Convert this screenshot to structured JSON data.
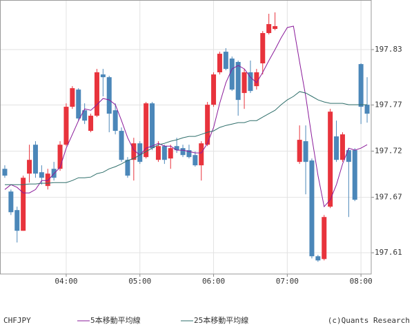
{
  "chart_data": {
    "type": "candlestick",
    "name": "CHFJPY",
    "footer": "(c)Quants Research",
    "up_color": "#e8333c",
    "down_color": "#4b87b9",
    "categories": [
      null,
      null,
      null,
      null,
      null,
      null,
      null,
      null,
      null,
      null,
      "04:00",
      null,
      null,
      null,
      null,
      null,
      null,
      null,
      null,
      null,
      null,
      null,
      "05:00",
      null,
      null,
      null,
      null,
      null,
      null,
      null,
      null,
      null,
      null,
      null,
      "06:00",
      null,
      null,
      null,
      null,
      null,
      null,
      null,
      null,
      null,
      null,
      null,
      "07:00",
      null,
      null,
      null,
      null,
      null,
      null,
      null,
      null,
      null,
      null,
      null,
      "08:00",
      null
    ],
    "open": [
      197.7009,
      197.6763,
      197.6562,
      197.6338,
      197.6957,
      197.727,
      197.6972,
      197.6823,
      197.7009,
      197.7009,
      197.727,
      197.7681,
      197.7867,
      197.7643,
      197.742,
      197.7584,
      197.8031,
      197.8001,
      197.7643,
      197.742,
      197.7106,
      197.7106,
      197.7285,
      197.7136,
      197.7718,
      197.7106,
      197.7255,
      197.7121,
      197.7255,
      197.7233,
      197.7211,
      197.7158,
      197.7047,
      197.727,
      197.7703,
      197.8054,
      197.8277,
      197.8203,
      197.8166,
      197.783,
      197.8054,
      197.7904,
      197.8151,
      197.8479,
      197.8524,
      null,
      null,
      null,
      197.7084,
      197.7308,
      197.7099,
      197.6062,
      197.6032,
      197.6599,
      197.736,
      197.7106,
      197.7211,
      197.7211,
      197.8143,
      197.7703
    ],
    "high": [
      197.7047,
      197.6785,
      197.6599,
      197.6935,
      197.727,
      197.7308,
      197.7047,
      197.7009,
      197.7084,
      197.7308,
      197.7718,
      197.7904,
      197.7882,
      197.7718,
      197.7606,
      197.8091,
      197.8091,
      197.8016,
      197.7718,
      197.7457,
      197.7136,
      197.7345,
      197.7308,
      197.7733,
      197.7733,
      197.7308,
      197.727,
      197.727,
      197.7345,
      197.727,
      197.727,
      197.7196,
      197.7308,
      197.7733,
      197.8054,
      197.8277,
      197.8315,
      197.8225,
      197.8181,
      197.8091,
      197.8181,
      197.8091,
      197.8501,
      197.8688,
      197.8703,
      null,
      null,
      null,
      197.7479,
      197.7479,
      197.7121,
      197.6077,
      197.6509,
      197.7658,
      197.7531,
      197.7405,
      197.7233,
      197.7233,
      197.8151,
      197.8001
    ],
    "low": [
      197.6912,
      197.6509,
      197.6211,
      197.6338,
      197.686,
      197.6912,
      197.6838,
      197.6785,
      197.6882,
      197.6987,
      197.7255,
      197.7658,
      197.7531,
      197.7494,
      197.7405,
      197.7569,
      197.7793,
      197.7405,
      197.7382,
      197.7084,
      197.6912,
      197.6882,
      197.7062,
      197.7121,
      197.7211,
      197.7084,
      197.7062,
      197.7009,
      197.7181,
      197.7136,
      197.7121,
      197.7032,
      197.6882,
      197.7255,
      197.7681,
      197.8031,
      197.8076,
      197.7852,
      197.7584,
      197.7658,
      197.783,
      197.7867,
      197.8031,
      197.8464,
      197.8509,
      null,
      null,
      null,
      197.7062,
      197.6733,
      197.6039,
      197.6002,
      197.6017,
      197.6584,
      197.7084,
      197.7084,
      197.6487,
      197.6659,
      197.7494,
      197.7509
    ],
    "close": [
      197.6935,
      197.6539,
      197.6338,
      197.6912,
      197.7106,
      197.6957,
      197.6912,
      197.6957,
      197.6912,
      197.727,
      197.7681,
      197.7882,
      197.7554,
      197.7531,
      197.7584,
      197.8054,
      197.8001,
      197.7606,
      197.742,
      197.7106,
      197.6935,
      197.7285,
      197.7084,
      197.7718,
      197.7233,
      197.7255,
      197.7106,
      197.7233,
      197.7211,
      197.7158,
      197.7136,
      197.7047,
      197.7285,
      197.7703,
      197.8031,
      197.8255,
      197.8091,
      197.7867,
      197.7755,
      197.8054,
      197.7852,
      197.8054,
      197.8479,
      197.8576,
      197.8554,
      null,
      null,
      null,
      197.7323,
      197.7084,
      197.6062,
      197.6017,
      197.6487,
      197.7628,
      197.7106,
      197.7382,
      197.7084,
      197.6674,
      197.7681,
      197.7606
    ],
    "series": [
      {
        "name": "5本移動平均線",
        "color": "#8a1a9a",
        "values": [
          197.6785,
          197.6838,
          197.6808,
          197.6748,
          197.6748,
          197.6785,
          197.6882,
          197.6882,
          197.6957,
          197.7024,
          197.7233,
          197.7382,
          197.7531,
          197.7658,
          197.7643,
          197.7703,
          197.777,
          197.7755,
          197.7703,
          197.7531,
          197.7345,
          197.7211,
          197.7158,
          197.7233,
          197.7255,
          197.7285,
          197.7255,
          197.7255,
          197.7211,
          197.7211,
          197.7196,
          197.7181,
          197.7181,
          197.7285,
          197.7457,
          197.7718,
          197.7942,
          197.8091,
          197.8128,
          197.8091,
          197.8001,
          197.7942,
          197.8054,
          197.8181,
          197.83,
          197.8427,
          197.8539,
          197.8554,
          197.8166,
          197.7793,
          197.7345,
          197.6935,
          197.6599,
          197.6674,
          197.6838,
          197.7062,
          197.7233,
          197.7211,
          197.7233,
          197.727
        ]
      },
      {
        "name": "25本移動平均線",
        "color": "#2e6e6a",
        "values": [
          197.6838,
          197.6838,
          197.6838,
          197.6838,
          197.6845,
          197.6845,
          197.6853,
          197.6853,
          197.686,
          197.686,
          197.686,
          197.6882,
          197.6912,
          197.6912,
          197.692,
          197.6957,
          197.6972,
          197.7009,
          197.7032,
          197.7062,
          197.7099,
          197.7121,
          197.7158,
          197.7196,
          197.7233,
          197.727,
          197.7285,
          197.7308,
          197.7323,
          197.7345,
          197.736,
          197.736,
          197.7382,
          197.7405,
          197.742,
          197.7457,
          197.7479,
          197.7494,
          197.7509,
          197.7509,
          197.7531,
          197.7531,
          197.7569,
          197.7606,
          197.7643,
          197.7703,
          197.7755,
          197.7793,
          197.7845,
          197.783,
          197.7793,
          197.7755,
          197.7733,
          197.7718,
          197.7718,
          197.7718,
          197.7703,
          197.7703,
          197.7703,
          197.7703
        ]
      }
    ],
    "ylim": [
      197.587,
      197.8837
    ],
    "yticks": [
      197.61,
      197.67,
      197.72,
      197.77,
      197.83
    ],
    "grid": true
  }
}
